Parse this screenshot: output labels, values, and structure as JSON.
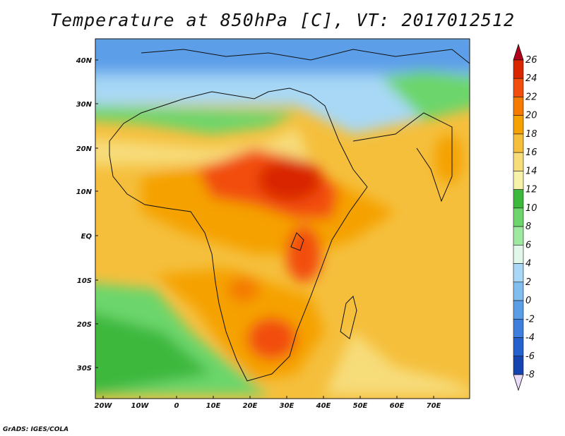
{
  "title": "Temperature at 850hPa [C], VT: 2017012512",
  "credit": "GrADS: IGES/COLA",
  "map": {
    "lon_labels": [
      "20W",
      "10W",
      "0",
      "10E",
      "20E",
      "30E",
      "40E",
      "50E",
      "60E",
      "70E"
    ],
    "lat_labels": [
      "40N",
      "30N",
      "20N",
      "10N",
      "EQ",
      "10S",
      "20S",
      "30S"
    ]
  },
  "colorbar": {
    "levels": [
      "26",
      "24",
      "22",
      "20",
      "18",
      "16",
      "14",
      "12",
      "10",
      "8",
      "6",
      "4",
      "2",
      "0",
      "-2",
      "-4",
      "-6",
      "-8"
    ],
    "colors": [
      "#d92600",
      "#f24d0d",
      "#f57a00",
      "#f5a100",
      "#f5bf3c",
      "#f7dc7a",
      "#f7f2aa",
      "#3cb83c",
      "#6cd66c",
      "#9fe89f",
      "#e0f7e9",
      "#a8d8f5",
      "#82bdf0",
      "#5b9ee8",
      "#3e7fdd",
      "#2461cc",
      "#1444b0",
      "#0a1f7a"
    ],
    "top_arrow_color": "#b3001b",
    "bottom_arrow_color": "#e8dcf8"
  }
}
